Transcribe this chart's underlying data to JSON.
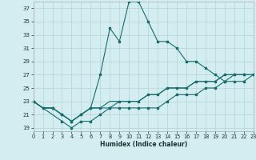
{
  "xlabel": "Humidex (Indice chaleur)",
  "bg_color": "#d4edf0",
  "grid_color": "#b8d8dc",
  "line_color": "#1a6b6b",
  "xlim": [
    0,
    23
  ],
  "ylim": [
    18.5,
    38.0
  ],
  "xticks": [
    0,
    1,
    2,
    3,
    4,
    5,
    6,
    7,
    8,
    9,
    10,
    11,
    12,
    13,
    14,
    15,
    16,
    17,
    18,
    19,
    20,
    21,
    22,
    23
  ],
  "yticks": [
    19,
    21,
    23,
    25,
    27,
    29,
    31,
    33,
    35,
    37
  ],
  "series": [
    {
      "x": [
        0,
        1,
        2,
        3,
        4,
        5,
        6,
        7,
        8,
        9,
        10,
        11,
        12,
        13,
        14,
        15,
        16,
        17,
        18,
        19,
        20,
        21,
        22
      ],
      "y": [
        23,
        22,
        22,
        21,
        20,
        21,
        22,
        27,
        34,
        32,
        38,
        38,
        35,
        32,
        32,
        31,
        29,
        29,
        28,
        27,
        26,
        27,
        27
      ],
      "marker": true
    },
    {
      "x": [
        0,
        1,
        2,
        3,
        4,
        5,
        6,
        7,
        8,
        9,
        10,
        11,
        12,
        13,
        14,
        15,
        16,
        17,
        18,
        19,
        20,
        21,
        22,
        23
      ],
      "y": [
        23,
        22,
        22,
        21,
        20,
        21,
        22,
        22,
        22,
        23,
        23,
        23,
        24,
        24,
        25,
        25,
        25,
        26,
        26,
        26,
        27,
        27,
        27,
        27
      ],
      "marker": true
    },
    {
      "x": [
        0,
        1,
        2,
        3,
        4,
        5,
        6,
        7,
        8,
        9,
        10,
        11,
        12,
        13,
        14,
        15,
        16,
        17,
        18,
        19,
        20,
        21,
        22,
        23
      ],
      "y": [
        23,
        22,
        22,
        21,
        20,
        21,
        22,
        22,
        23,
        23,
        23,
        23,
        24,
        24,
        25,
        25,
        25,
        26,
        26,
        26,
        27,
        27,
        27,
        27
      ],
      "marker": false
    },
    {
      "x": [
        0,
        3,
        4,
        5,
        6,
        7,
        8,
        9,
        10,
        11,
        12,
        13,
        14,
        15,
        16,
        17,
        18,
        19,
        20,
        21,
        22,
        23
      ],
      "y": [
        23,
        20,
        19,
        20,
        20,
        21,
        22,
        22,
        22,
        22,
        22,
        22,
        23,
        24,
        24,
        24,
        25,
        25,
        26,
        26,
        26,
        27
      ],
      "marker": true
    }
  ]
}
